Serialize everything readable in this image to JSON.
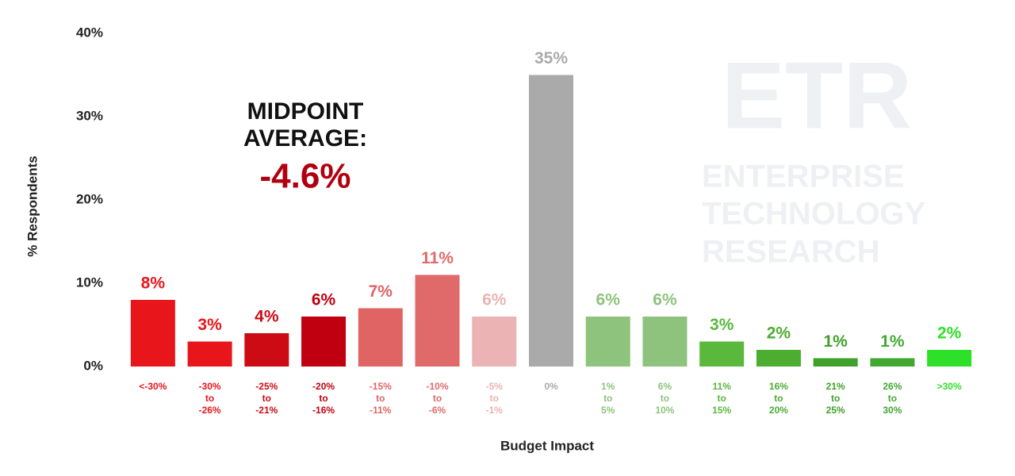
{
  "chart_data": {
    "type": "bar",
    "y_label": "% Respondents",
    "x_label": "Budget Impact",
    "annotation": {
      "heading": "MIDPOINT AVERAGE:",
      "value": "-4.6%"
    },
    "watermark": {
      "logo": "ETR",
      "lines": [
        "ENTERPRISE",
        "TECHNOLOGY",
        "RESEARCH"
      ]
    },
    "categories": [
      "<-30%",
      "-30% to -26%",
      "-25% to -21%",
      "-20% to -16%",
      "-15% to -11%",
      "-10% to -6%",
      "-5% to -1%",
      "0%",
      "1% to 5%",
      "6% to 10%",
      "11% to 15%",
      "16% to 20%",
      "21% to 25%",
      "26% to 30%",
      ">30%"
    ],
    "values": [
      8,
      3,
      4,
      6,
      7,
      11,
      6,
      35,
      6,
      6,
      3,
      2,
      1,
      1,
      2
    ],
    "value_labels": [
      "8%",
      "3%",
      "4%",
      "6%",
      "7%",
      "11%",
      "6%",
      "35%",
      "6%",
      "6%",
      "3%",
      "2%",
      "1%",
      "1%",
      "2%"
    ],
    "colors": [
      "#e8161b",
      "#e8161b",
      "#cc0b14",
      "#c00010",
      "#e06464",
      "#e06a6a",
      "#ebb3b3",
      "#aaaaaa",
      "#8dc37d",
      "#8dc37d",
      "#5ab83c",
      "#4cad30",
      "#3fa02a",
      "#42a832",
      "#2ee02a"
    ],
    "ylim": [
      0,
      40
    ],
    "yticks": [
      {
        "value": 0,
        "label": "0%"
      },
      {
        "value": 10,
        "label": "10%"
      },
      {
        "value": 20,
        "label": "20%"
      },
      {
        "value": 30,
        "label": "30%"
      },
      {
        "value": 40,
        "label": "40%"
      }
    ],
    "grid": false
  }
}
